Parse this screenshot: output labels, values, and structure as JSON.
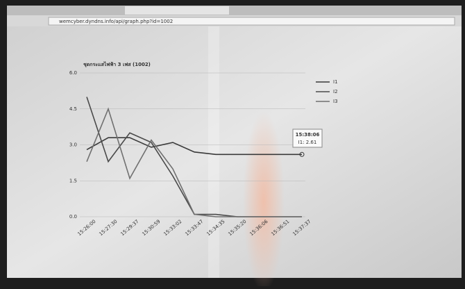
{
  "browser": {
    "url": "wemcyber.dyndns.info/api/graph.php?id=1002"
  },
  "chart_data": {
    "type": "line",
    "title": "ชุดกระแสไฟฟ้า 3 เฟส (1002)",
    "categories": [
      "15:26:00",
      "15:27:30",
      "15:29:37",
      "15:30:59",
      "15:33:02",
      "15:33:47",
      "15:34:35",
      "15:35:20",
      "15:36:06",
      "15:36:51",
      "15:37:37"
    ],
    "series": [
      {
        "name": "I1",
        "color": "#3a3a3a",
        "values": [
          2.8,
          3.3,
          3.3,
          2.9,
          3.1,
          2.7,
          2.6,
          2.6,
          2.6,
          2.6,
          2.6
        ]
      },
      {
        "name": "I2",
        "color": "#4a4a4a",
        "values": [
          5.0,
          2.3,
          3.5,
          3.1,
          1.7,
          0.1,
          0.1,
          0.0,
          0.0,
          0.0,
          0.0
        ]
      },
      {
        "name": "I3",
        "color": "#707070",
        "values": [
          2.3,
          4.5,
          1.6,
          3.2,
          2.0,
          0.1,
          0.0,
          0.0,
          0.0,
          0.0,
          0.0
        ]
      }
    ],
    "ylim": [
      0,
      6
    ],
    "yticks": [
      {
        "value": 0,
        "label": "0.0"
      },
      1.5,
      {
        "value": 3,
        "label": "3.0"
      },
      4.5,
      {
        "value": 6,
        "label": "6.0"
      }
    ],
    "grid": true,
    "tooltip": {
      "time": "15:38:06",
      "text": "I1: 2.61"
    }
  }
}
